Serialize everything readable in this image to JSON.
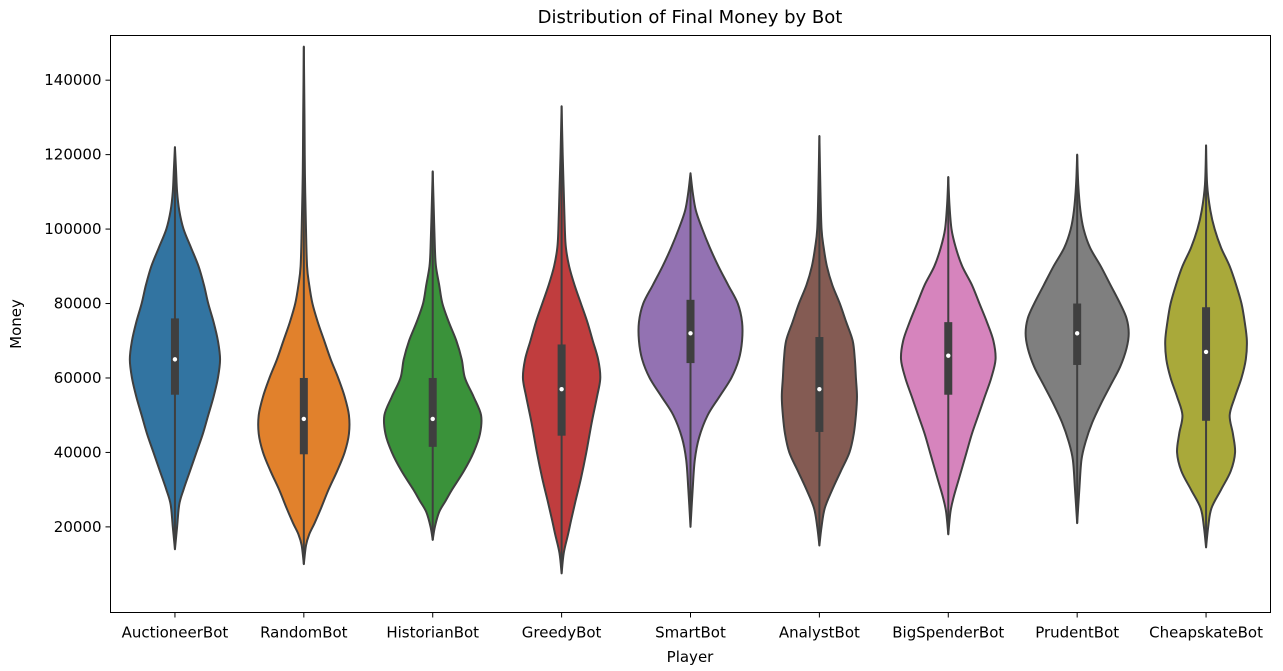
{
  "chart_data": {
    "type": "violin",
    "title": "Distribution of Final Money by Bot",
    "xlabel": "Player",
    "ylabel": "Money",
    "ylim": [
      -3000,
      152000
    ],
    "yticks": [
      20000,
      40000,
      60000,
      80000,
      100000,
      120000,
      140000
    ],
    "grid": false,
    "legend": "none",
    "categories": [
      "AuctioneerBot",
      "RandomBot",
      "HistorianBot",
      "GreedyBot",
      "SmartBot",
      "AnalystBot",
      "BigSpenderBot",
      "PrudentBot",
      "CheapskateBot"
    ],
    "series": [
      {
        "category": "AuctioneerBot",
        "color": "#3274a1",
        "min": 14000,
        "max": 122000,
        "q1": 55500,
        "median": 65000,
        "q3": 76000,
        "density": [
          [
            14000,
            0
          ],
          [
            20000,
            2
          ],
          [
            26000,
            4
          ],
          [
            30000,
            8
          ],
          [
            35000,
            14
          ],
          [
            40000,
            20
          ],
          [
            45000,
            26
          ],
          [
            50000,
            31
          ],
          [
            55000,
            36
          ],
          [
            60000,
            40
          ],
          [
            65000,
            42
          ],
          [
            70000,
            40
          ],
          [
            75000,
            36
          ],
          [
            80000,
            31
          ],
          [
            85000,
            27
          ],
          [
            90000,
            22
          ],
          [
            95000,
            15
          ],
          [
            100000,
            8
          ],
          [
            105000,
            4
          ],
          [
            110000,
            2
          ],
          [
            116000,
            1
          ],
          [
            122000,
            0
          ]
        ]
      },
      {
        "category": "RandomBot",
        "color": "#e1812c",
        "min": 10000,
        "max": 149000,
        "q1": 39500,
        "median": 49000,
        "q3": 60000,
        "density": [
          [
            10000,
            0
          ],
          [
            15000,
            2
          ],
          [
            18000,
            5
          ],
          [
            21000,
            10
          ],
          [
            25000,
            16
          ],
          [
            30000,
            23
          ],
          [
            35000,
            31
          ],
          [
            40000,
            38
          ],
          [
            45000,
            42
          ],
          [
            50000,
            42
          ],
          [
            55000,
            38
          ],
          [
            60000,
            32
          ],
          [
            65000,
            25
          ],
          [
            70000,
            19
          ],
          [
            75000,
            13
          ],
          [
            80000,
            8
          ],
          [
            85000,
            5
          ],
          [
            90000,
            3
          ],
          [
            100000,
            2
          ],
          [
            115000,
            1
          ],
          [
            130000,
            0.6
          ],
          [
            149000,
            0
          ]
        ]
      },
      {
        "category": "HistorianBot",
        "color": "#3a923a",
        "min": 16500,
        "max": 115500,
        "q1": 41500,
        "median": 49000,
        "q3": 60000,
        "density": [
          [
            16500,
            0
          ],
          [
            20000,
            2
          ],
          [
            24000,
            6
          ],
          [
            27000,
            12
          ],
          [
            30000,
            18
          ],
          [
            35000,
            29
          ],
          [
            40000,
            38
          ],
          [
            45000,
            44
          ],
          [
            50000,
            45
          ],
          [
            55000,
            38
          ],
          [
            60000,
            30
          ],
          [
            65000,
            27
          ],
          [
            70000,
            22
          ],
          [
            75000,
            15
          ],
          [
            80000,
            9
          ],
          [
            85000,
            6
          ],
          [
            90000,
            3
          ],
          [
            95000,
            2
          ],
          [
            105000,
            1
          ],
          [
            115500,
            0
          ]
        ]
      },
      {
        "category": "GreedyBot",
        "color": "#c03d3e",
        "min": 7500,
        "max": 133000,
        "q1": 44500,
        "median": 57000,
        "q3": 69000,
        "density": [
          [
            7500,
            0
          ],
          [
            13000,
            2
          ],
          [
            18000,
            6
          ],
          [
            22000,
            9
          ],
          [
            27000,
            13
          ],
          [
            33000,
            18
          ],
          [
            40000,
            23
          ],
          [
            48000,
            28
          ],
          [
            55000,
            33
          ],
          [
            60000,
            36
          ],
          [
            65000,
            34
          ],
          [
            70000,
            29
          ],
          [
            75000,
            24
          ],
          [
            80000,
            18
          ],
          [
            85000,
            12
          ],
          [
            90000,
            7
          ],
          [
            95000,
            4
          ],
          [
            100000,
            3
          ],
          [
            110000,
            2
          ],
          [
            120000,
            1
          ],
          [
            133000,
            0
          ]
        ]
      },
      {
        "category": "SmartBot",
        "color": "#9372b2",
        "min": 20000,
        "max": 115000,
        "q1": 64000,
        "median": 72000,
        "q3": 81000,
        "density": [
          [
            20000,
            0
          ],
          [
            30000,
            2
          ],
          [
            38000,
            4
          ],
          [
            44000,
            8
          ],
          [
            50000,
            16
          ],
          [
            55000,
            27
          ],
          [
            60000,
            38
          ],
          [
            65000,
            45
          ],
          [
            70000,
            48
          ],
          [
            75000,
            48
          ],
          [
            80000,
            44
          ],
          [
            85000,
            35
          ],
          [
            90000,
            26
          ],
          [
            95000,
            18
          ],
          [
            100000,
            11
          ],
          [
            105000,
            5
          ],
          [
            110000,
            2
          ],
          [
            115000,
            0
          ]
        ]
      },
      {
        "category": "AnalystBot",
        "color": "#845b53",
        "min": 15000,
        "max": 125000,
        "q1": 45500,
        "median": 57000,
        "q3": 71000,
        "density": [
          [
            15000,
            0
          ],
          [
            20000,
            2
          ],
          [
            25000,
            5
          ],
          [
            30000,
            12
          ],
          [
            35000,
            20
          ],
          [
            40000,
            28
          ],
          [
            45000,
            32
          ],
          [
            50000,
            34
          ],
          [
            55000,
            35
          ],
          [
            60000,
            34
          ],
          [
            65000,
            33
          ],
          [
            70000,
            31
          ],
          [
            75000,
            25
          ],
          [
            80000,
            19
          ],
          [
            85000,
            12
          ],
          [
            90000,
            7
          ],
          [
            95000,
            4
          ],
          [
            100000,
            2
          ],
          [
            110000,
            1
          ],
          [
            125000,
            0
          ]
        ]
      },
      {
        "category": "BigSpenderBot",
        "color": "#d684bd",
        "min": 18000,
        "max": 114000,
        "q1": 55500,
        "median": 66000,
        "q3": 75000,
        "density": [
          [
            18000,
            0
          ],
          [
            24000,
            2
          ],
          [
            28000,
            5
          ],
          [
            33000,
            10
          ],
          [
            40000,
            17
          ],
          [
            45000,
            22
          ],
          [
            50000,
            28
          ],
          [
            55000,
            34
          ],
          [
            60000,
            40
          ],
          [
            65000,
            44
          ],
          [
            70000,
            42
          ],
          [
            75000,
            36
          ],
          [
            80000,
            29
          ],
          [
            85000,
            22
          ],
          [
            90000,
            13
          ],
          [
            95000,
            7
          ],
          [
            100000,
            3
          ],
          [
            107000,
            1
          ],
          [
            114000,
            0
          ]
        ]
      },
      {
        "category": "PrudentBot",
        "color": "#7f7f7f",
        "min": 21000,
        "max": 120000,
        "q1": 63500,
        "median": 72000,
        "q3": 80000,
        "density": [
          [
            21000,
            0
          ],
          [
            30000,
            2
          ],
          [
            38000,
            4
          ],
          [
            43000,
            8
          ],
          [
            48000,
            14
          ],
          [
            53000,
            22
          ],
          [
            58000,
            31
          ],
          [
            63000,
            40
          ],
          [
            68000,
            46
          ],
          [
            72000,
            48
          ],
          [
            76000,
            46
          ],
          [
            80000,
            40
          ],
          [
            85000,
            31
          ],
          [
            90000,
            22
          ],
          [
            95000,
            12
          ],
          [
            100000,
            6
          ],
          [
            105000,
            3
          ],
          [
            112000,
            1
          ],
          [
            120000,
            0
          ]
        ]
      },
      {
        "category": "CheapskateBot",
        "color": "#a9a93a",
        "min": 14500,
        "max": 122500,
        "q1": 48500,
        "median": 67000,
        "q3": 79000,
        "density": [
          [
            14500,
            0
          ],
          [
            20000,
            2
          ],
          [
            25000,
            5
          ],
          [
            30000,
            14
          ],
          [
            35000,
            23
          ],
          [
            40000,
            27
          ],
          [
            45000,
            25
          ],
          [
            50000,
            22
          ],
          [
            55000,
            27
          ],
          [
            60000,
            33
          ],
          [
            65000,
            37
          ],
          [
            70000,
            38
          ],
          [
            75000,
            36
          ],
          [
            80000,
            33
          ],
          [
            85000,
            28
          ],
          [
            90000,
            22
          ],
          [
            95000,
            14
          ],
          [
            100000,
            8
          ],
          [
            105000,
            4
          ],
          [
            112000,
            1
          ],
          [
            122500,
            0
          ]
        ]
      }
    ]
  }
}
